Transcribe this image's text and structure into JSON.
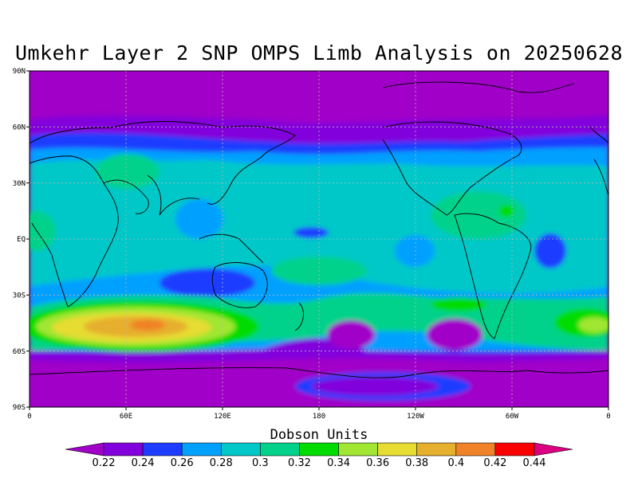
{
  "title": "Umkehr Layer 2 SNP OMPS Limb Analysis on 20250628",
  "map": {
    "projection": "equirectangular",
    "lat_ticks": [
      "90N",
      "60N",
      "30N",
      "EQ",
      "30S",
      "60S",
      "90S"
    ],
    "lon_ticks": [
      "0",
      "60E",
      "120E",
      "180",
      "120W",
      "60W",
      "0"
    ],
    "grid": true
  },
  "colorbar": {
    "title": "Dobson Units",
    "labels": [
      "0.22",
      "0.24",
      "0.26",
      "0.28",
      "0.3",
      "0.32",
      "0.34",
      "0.36",
      "0.38",
      "0.4",
      "0.42",
      "0.44"
    ],
    "colors": [
      "#a000c8",
      "#8200dc",
      "#1e3cff",
      "#00a0ff",
      "#00c8c8",
      "#00d28c",
      "#00dc00",
      "#a0e632",
      "#e6dc32",
      "#e6af2d",
      "#f08228",
      "#fa0000",
      "#dc0082"
    ]
  }
}
